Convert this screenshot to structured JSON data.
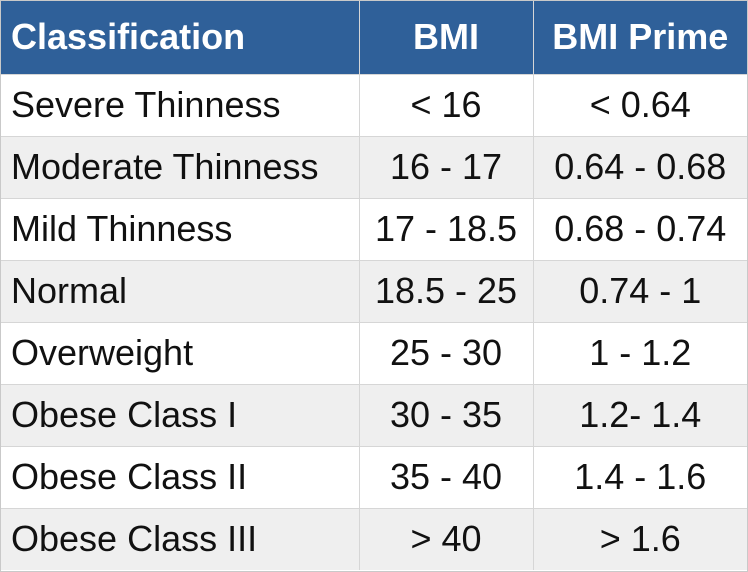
{
  "table": {
    "headers": [
      "Classification",
      "BMI",
      "BMI Prime"
    ],
    "rows": [
      [
        "Severe Thinness",
        "< 16",
        "< 0.64"
      ],
      [
        "Moderate Thinness",
        "16 - 17",
        "0.64 - 0.68"
      ],
      [
        "Mild Thinness",
        "17 - 18.5",
        "0.68 - 0.74"
      ],
      [
        "Normal",
        "18.5 - 25",
        "0.74 - 1"
      ],
      [
        "Overweight",
        "25 - 30",
        "1 - 1.2"
      ],
      [
        "Obese Class I",
        "30 - 35",
        "1.2- 1.4"
      ],
      [
        "Obese Class II",
        "35 - 40",
        "1.4 - 1.6"
      ],
      [
        "Obese Class III",
        "> 40",
        "> 1.6"
      ]
    ]
  },
  "colors": {
    "header_background": "#2f6099",
    "header_text": "#ffffff",
    "alt_row_background": "#efefef",
    "row_background": "#ffffff",
    "border": "#d6d6d6"
  }
}
